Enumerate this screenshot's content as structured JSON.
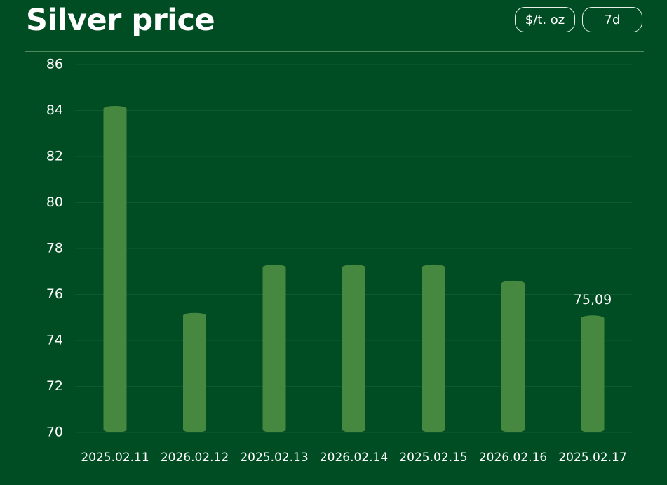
{
  "header": {
    "title": "Silver price",
    "unit": "$/t. oz",
    "period": "7d"
  },
  "chart_data": {
    "type": "bar",
    "categories": [
      "2025.02.11",
      "2026.02.12",
      "2025.02.13",
      "2026.02.14",
      "2025.02.15",
      "2026.02.16",
      "2025.02.17"
    ],
    "values": [
      84.2,
      75.2,
      77.3,
      77.3,
      77.3,
      76.6,
      75.09
    ],
    "value_labels": [
      null,
      null,
      null,
      null,
      null,
      null,
      "75,09"
    ],
    "color": "#46883f",
    "ylim": [
      70,
      86
    ],
    "yticks": [
      70,
      72,
      74,
      76,
      78,
      80,
      82,
      84,
      86
    ],
    "grid": true
  }
}
